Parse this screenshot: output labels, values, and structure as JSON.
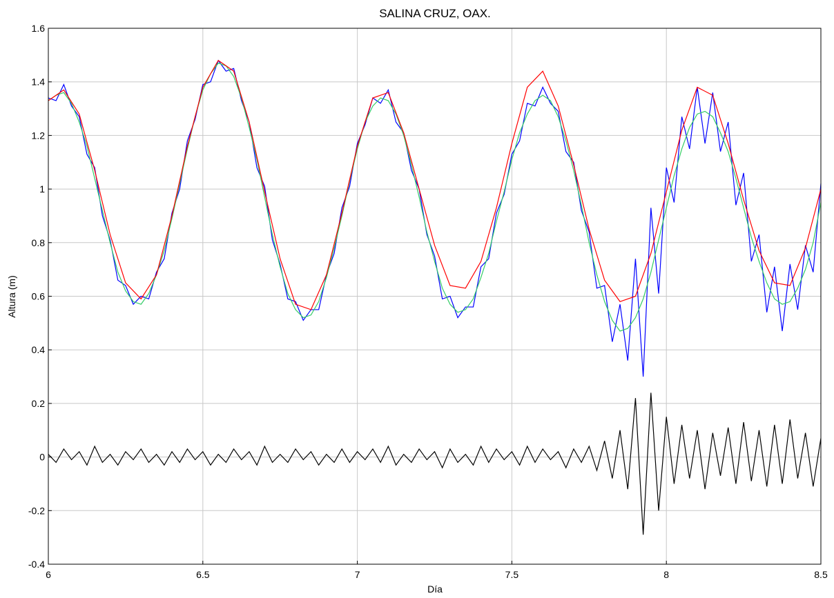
{
  "chart_data": {
    "type": "line",
    "title": "SALINA CRUZ, OAX.",
    "x_label": "Día",
    "y_label": "Altura (m)",
    "xlim": [
      6,
      8.5
    ],
    "ylim": [
      -0.4,
      1.6
    ],
    "xticks": [
      6,
      6.5,
      7,
      7.5,
      8,
      8.5
    ],
    "yticks": [
      -0.4,
      -0.2,
      0,
      0.2,
      0.4,
      0.6,
      0.8,
      1,
      1.2,
      1.4,
      1.6
    ],
    "grid": true,
    "x": [
      6,
      6.025,
      6.05,
      6.075,
      6.1,
      6.125,
      6.15,
      6.175,
      6.2,
      6.225,
      6.25,
      6.275,
      6.3,
      6.325,
      6.35,
      6.375,
      6.4,
      6.425,
      6.45,
      6.475,
      6.5,
      6.525,
      6.55,
      6.575,
      6.6,
      6.625,
      6.65,
      6.675,
      6.7,
      6.725,
      6.75,
      6.775,
      6.8,
      6.825,
      6.85,
      6.875,
      6.9,
      6.925,
      6.95,
      6.975,
      7,
      7.025,
      7.05,
      7.075,
      7.1,
      7.125,
      7.15,
      7.175,
      7.2,
      7.225,
      7.25,
      7.275,
      7.3,
      7.325,
      7.35,
      7.375,
      7.4,
      7.425,
      7.45,
      7.475,
      7.5,
      7.525,
      7.55,
      7.575,
      7.6,
      7.625,
      7.65,
      7.675,
      7.7,
      7.725,
      7.75,
      7.775,
      7.8,
      7.825,
      7.85,
      7.875,
      7.9,
      7.925,
      7.95,
      7.975,
      8,
      8.025,
      8.05,
      8.075,
      8.1,
      8.125,
      8.15,
      8.175,
      8.2,
      8.225,
      8.25,
      8.275,
      8.3,
      8.325,
      8.35,
      8.375,
      8.4,
      8.425,
      8.45,
      8.475,
      8.5
    ],
    "series": [
      {
        "color": "#000000",
        "values": [
          0.01,
          -0.02,
          0.03,
          -0.01,
          0.02,
          -0.03,
          0.04,
          -0.02,
          0.01,
          -0.03,
          0.02,
          -0.01,
          0.03,
          -0.02,
          0.01,
          -0.03,
          0.02,
          -0.02,
          0.03,
          -0.01,
          0.02,
          -0.03,
          0.01,
          -0.02,
          0.03,
          -0.01,
          0.02,
          -0.03,
          0.04,
          -0.02,
          0.01,
          -0.02,
          0.03,
          -0.01,
          0.02,
          -0.03,
          0.01,
          -0.02,
          0.03,
          -0.02,
          0.02,
          -0.01,
          0.03,
          -0.02,
          0.04,
          -0.03,
          0.01,
          -0.02,
          0.03,
          -0.01,
          0.02,
          -0.04,
          0.03,
          -0.02,
          0.01,
          -0.03,
          0.04,
          -0.02,
          0.03,
          -0.01,
          0.02,
          -0.03,
          0.04,
          -0.02,
          0.03,
          -0.01,
          0.02,
          -0.04,
          0.03,
          -0.02,
          0.04,
          -0.05,
          0.06,
          -0.08,
          0.1,
          -0.12,
          0.22,
          -0.29,
          0.24,
          -0.2,
          0.15,
          -0.1,
          0.12,
          -0.08,
          0.1,
          -0.12,
          0.09,
          -0.07,
          0.11,
          -0.1,
          0.13,
          -0.09,
          0.1,
          -0.11,
          0.12,
          -0.1,
          0.14,
          -0.08,
          0.09,
          -0.11,
          0.07
        ]
      },
      {
        "color": "#0000ff",
        "values": [
          1.34,
          1.33,
          1.39,
          1.31,
          1.27,
          1.13,
          1.08,
          0.9,
          0.81,
          0.66,
          0.64,
          0.57,
          0.6,
          0.59,
          0.69,
          0.74,
          0.91,
          1,
          1.18,
          1.26,
          1.39,
          1.4,
          1.48,
          1.44,
          1.45,
          1.33,
          1.25,
          1.08,
          1.01,
          0.81,
          0.72,
          0.59,
          0.58,
          0.51,
          0.55,
          0.55,
          0.68,
          0.76,
          0.93,
          1.01,
          1.17,
          1.24,
          1.34,
          1.32,
          1.37,
          1.25,
          1.21,
          1.07,
          1,
          0.83,
          0.75,
          0.59,
          0.6,
          0.52,
          0.56,
          0.56,
          0.71,
          0.74,
          0.91,
          0.98,
          1.13,
          1.18,
          1.32,
          1.31,
          1.38,
          1.32,
          1.29,
          1.14,
          1.1,
          0.92,
          0.84,
          0.63,
          0.64,
          0.43,
          0.57,
          0.36,
          0.74,
          0.3,
          0.93,
          0.61,
          1.08,
          0.95,
          1.27,
          1.15,
          1.38,
          1.17,
          1.36,
          1.14,
          1.25,
          0.94,
          1.06,
          0.73,
          0.83,
          0.54,
          0.71,
          0.47,
          0.72,
          0.55,
          0.79,
          0.69,
          1.02
        ]
      },
      {
        "color": "#33cc66",
        "values": [
          1.33,
          1.35,
          1.36,
          1.32,
          1.25,
          1.16,
          1.04,
          0.92,
          0.8,
          0.69,
          0.62,
          0.58,
          0.57,
          0.61,
          0.68,
          0.77,
          0.89,
          1.02,
          1.15,
          1.27,
          1.37,
          1.43,
          1.47,
          1.46,
          1.42,
          1.34,
          1.23,
          1.11,
          0.97,
          0.83,
          0.71,
          0.61,
          0.55,
          0.52,
          0.53,
          0.58,
          0.67,
          0.78,
          0.9,
          1.03,
          1.15,
          1.25,
          1.31,
          1.34,
          1.33,
          1.28,
          1.2,
          1.09,
          0.97,
          0.84,
          0.73,
          0.63,
          0.57,
          0.54,
          0.55,
          0.59,
          0.67,
          0.76,
          0.88,
          0.99,
          1.11,
          1.21,
          1.28,
          1.33,
          1.35,
          1.33,
          1.27,
          1.18,
          1.07,
          0.94,
          0.8,
          0.68,
          0.58,
          0.51,
          0.47,
          0.48,
          0.52,
          0.59,
          0.69,
          0.81,
          0.93,
          1.05,
          1.15,
          1.23,
          1.28,
          1.29,
          1.27,
          1.21,
          1.14,
          1.04,
          0.93,
          0.82,
          0.73,
          0.65,
          0.59,
          0.57,
          0.58,
          0.63,
          0.7,
          0.8,
          0.95
        ]
      },
      {
        "color": "#ff0000",
        "x": [
          6,
          6.05,
          6.1,
          6.15,
          6.2,
          6.25,
          6.3,
          6.35,
          6.4,
          6.45,
          6.5,
          6.55,
          6.6,
          6.65,
          6.7,
          6.75,
          6.8,
          6.85,
          6.9,
          6.95,
          7,
          7.05,
          7.1,
          7.15,
          7.2,
          7.25,
          7.3,
          7.35,
          7.4,
          7.45,
          7.5,
          7.55,
          7.6,
          7.65,
          7.7,
          7.75,
          7.8,
          7.85,
          7.9,
          7.95,
          8,
          8.05,
          8.1,
          8.15,
          8.2,
          8.25,
          8.3,
          8.35,
          8.4,
          8.45,
          8.5
        ],
        "values": [
          1.33,
          1.37,
          1.28,
          1.07,
          0.83,
          0.65,
          0.59,
          0.68,
          0.9,
          1.16,
          1.38,
          1.48,
          1.44,
          1.25,
          0.99,
          0.74,
          0.57,
          0.55,
          0.68,
          0.91,
          1.16,
          1.34,
          1.36,
          1.21,
          1,
          0.79,
          0.64,
          0.63,
          0.73,
          0.93,
          1.17,
          1.38,
          1.44,
          1.31,
          1.09,
          0.85,
          0.66,
          0.58,
          0.6,
          0.76,
          0.99,
          1.22,
          1.38,
          1.35,
          1.17,
          0.96,
          0.77,
          0.65,
          0.64,
          0.78,
          1
        ]
      }
    ]
  }
}
